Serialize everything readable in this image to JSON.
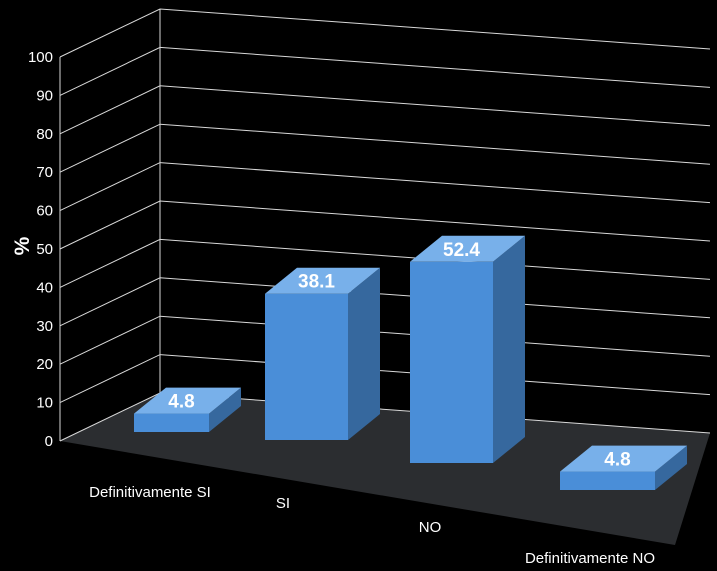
{
  "chart_data": {
    "type": "bar",
    "categories": [
      "Definitivamente SI",
      "SI",
      "NO",
      "Definitivamente NO"
    ],
    "values": [
      4.8,
      38.1,
      52.4,
      4.8
    ],
    "data_labels": [
      "4.8",
      "38.1",
      "52.4",
      "4.8"
    ],
    "ylabel": "%",
    "ylim": [
      0,
      100
    ],
    "yticks": [
      "0",
      "10",
      "20",
      "30",
      "40",
      "50",
      "60",
      "70",
      "80",
      "90",
      "100"
    ],
    "grid": true,
    "style": "3d-column",
    "bar_colors": {
      "front": "#4a8ed8",
      "top": "#78b0ea",
      "side": "#36689e"
    },
    "background": "#000000",
    "floor_color": "#2b2d30",
    "gridline_color": "#d9d9d9"
  }
}
